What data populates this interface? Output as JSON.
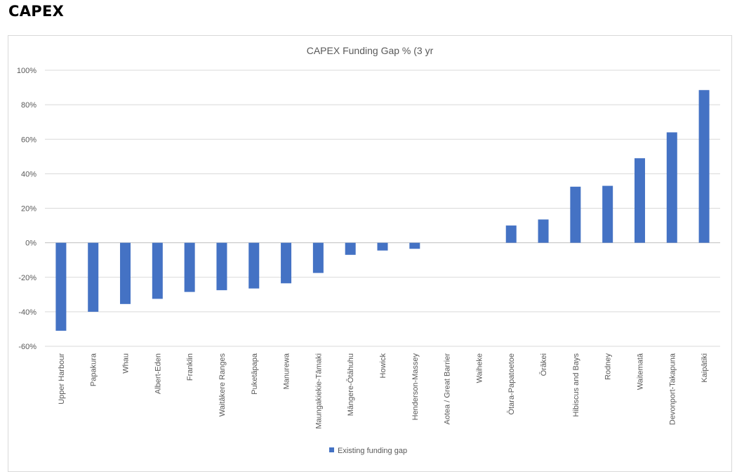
{
  "heading": "CAPEX",
  "chart_data": {
    "type": "bar",
    "title": "CAPEX Funding Gap % (3 yr",
    "xlabel": "",
    "ylabel": "",
    "ylim": [
      -60,
      100
    ],
    "yticks": [
      100,
      80,
      60,
      40,
      20,
      0,
      -20,
      -40,
      -60
    ],
    "ytick_labels": [
      "100%",
      "80%",
      "60%",
      "40%",
      "20%",
      "0%",
      "-20%",
      "-40%",
      "-60%"
    ],
    "grid": true,
    "legend_position": "bottom",
    "categories": [
      "Upper Harbour",
      "Papakura",
      "Whau",
      "Albert-Eden",
      "Franklin",
      "Waitākere Ranges",
      "Puketāpapa",
      "Manurewa",
      "Maungakiekie-Tāmaki",
      "Māngere-Ōtāhuhu",
      "Howick",
      "Henderson-Massey",
      "Aotea / Great Barrier",
      "Waiheke",
      "Ōtara-Papatoetoe",
      "Ōrākei",
      "Hibiscus and Bays",
      "Rodney",
      "Waitematā",
      "Devonport-Takapuna",
      "Kaipātiki"
    ],
    "series": [
      {
        "name": "Existing funding gap",
        "color": "#4472c4",
        "values": [
          -51,
          -40,
          -35.5,
          -32.5,
          -28.5,
          -27.5,
          -26.5,
          -23.5,
          -17.5,
          -7,
          -4.5,
          -3.5,
          0,
          0,
          10,
          13.5,
          32.5,
          33,
          49,
          64,
          88.5
        ]
      }
    ]
  }
}
